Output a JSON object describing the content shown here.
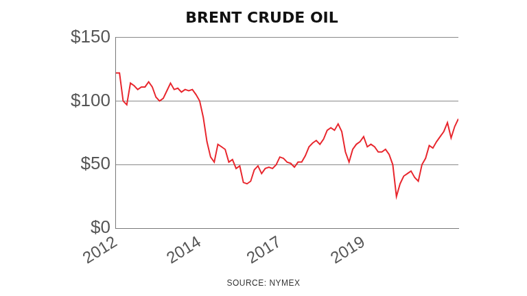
{
  "chart_data": {
    "type": "line",
    "title": "BRENT CRUDE OIL",
    "source": "SOURCE: NYMEX",
    "categories": [
      "2012",
      null,
      null,
      null,
      null,
      null,
      null,
      null,
      null,
      null,
      null,
      null,
      null,
      null,
      null,
      null,
      null,
      null,
      null,
      null,
      null,
      null,
      null,
      "2014",
      null,
      null,
      null,
      null,
      null,
      null,
      null,
      null,
      null,
      null,
      null,
      null,
      null,
      null,
      null,
      null,
      null,
      null,
      null,
      null,
      null,
      "2017",
      null,
      null,
      null,
      null,
      null,
      null,
      null,
      null,
      null,
      null,
      null,
      null,
      null,
      null,
      null,
      null,
      null,
      null,
      null,
      null,
      null,
      null,
      "2019",
      null,
      null,
      null,
      null,
      null,
      null,
      null,
      null,
      null,
      null,
      null,
      null,
      null,
      null,
      null,
      null,
      null,
      null,
      null,
      null,
      null,
      null,
      null,
      null,
      null,
      null
    ],
    "values": [
      122,
      122,
      100,
      97,
      114,
      112,
      109,
      111,
      111,
      115,
      111,
      103,
      100,
      102,
      108,
      114,
      109,
      110,
      107,
      109,
      108,
      109,
      105,
      100,
      87,
      68,
      56,
      52,
      66,
      64,
      62,
      52,
      54,
      47,
      49,
      36,
      35,
      37,
      46,
      49,
      43,
      47,
      48,
      47,
      50,
      56,
      55,
      52,
      51,
      48,
      52,
      52,
      57,
      64,
      67,
      69,
      66,
      70,
      77,
      79,
      77,
      82,
      76,
      60,
      52,
      62,
      66,
      68,
      72,
      64,
      66,
      64,
      60,
      60,
      62,
      58,
      50,
      25,
      35,
      41,
      43,
      45,
      40,
      37,
      50,
      55,
      65,
      63,
      68,
      72,
      76,
      83,
      71,
      80,
      86
    ],
    "color": "#e8262d",
    "ylim": [
      0,
      150
    ],
    "yticks": [
      {
        "value": 0,
        "label": "$0"
      },
      {
        "value": 50,
        "label": "$50"
      },
      {
        "value": 100,
        "label": "$100"
      },
      {
        "value": 150,
        "label": "$150"
      }
    ],
    "grid": true
  }
}
